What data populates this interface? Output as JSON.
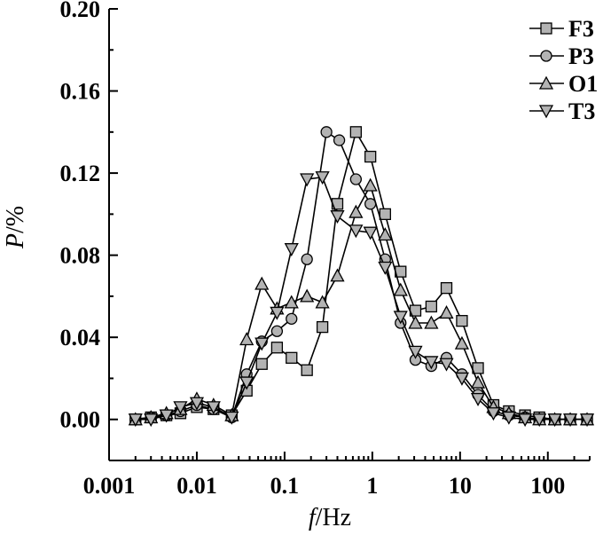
{
  "chart_data": {
    "type": "line",
    "title": "",
    "xlabel_var": "f",
    "xlabel_unit": "/Hz",
    "ylabel_var": "P",
    "ylabel_unit": "/%",
    "xscale": "log",
    "xlim": [
      0.001,
      300
    ],
    "ylim": [
      -0.02,
      0.2
    ],
    "x_tick_values": [
      0.001,
      0.01,
      0.1,
      1,
      10,
      100
    ],
    "x_tick_labels": [
      "0.001",
      "0.01",
      "0.1",
      "1",
      "10",
      "100"
    ],
    "y_tick_values": [
      0,
      0.04,
      0.08,
      0.12,
      0.16,
      0.2
    ],
    "y_tick_labels": [
      "0.00",
      "0.04",
      "0.08",
      "0.12",
      "0.16",
      "0.20"
    ],
    "grid": false,
    "legend_position": "top-right",
    "series": [
      {
        "name": "F3",
        "marker": "square",
        "points": [
          [
            0.002,
            0.0
          ],
          [
            0.003,
            0.001
          ],
          [
            0.0045,
            0.002
          ],
          [
            0.0065,
            0.003
          ],
          [
            0.01,
            0.006
          ],
          [
            0.0155,
            0.005
          ],
          [
            0.025,
            0.002
          ],
          [
            0.037,
            0.014
          ],
          [
            0.055,
            0.027
          ],
          [
            0.082,
            0.035
          ],
          [
            0.12,
            0.03
          ],
          [
            0.18,
            0.024
          ],
          [
            0.27,
            0.045
          ],
          [
            0.4,
            0.105
          ],
          [
            0.65,
            0.14
          ],
          [
            0.95,
            0.128
          ],
          [
            1.4,
            0.1
          ],
          [
            2.1,
            0.072
          ],
          [
            3.1,
            0.053
          ],
          [
            4.7,
            0.055
          ],
          [
            7.0,
            0.064
          ],
          [
            10.5,
            0.048
          ],
          [
            16,
            0.025
          ],
          [
            24,
            0.007
          ],
          [
            36,
            0.004
          ],
          [
            55,
            0.002
          ],
          [
            80,
            0.001
          ],
          [
            120,
            0.0
          ],
          [
            180,
            0.0
          ],
          [
            280,
            0.0
          ]
        ]
      },
      {
        "name": "P3",
        "marker": "circle",
        "points": [
          [
            0.002,
            0.0
          ],
          [
            0.003,
            0.001
          ],
          [
            0.0045,
            0.002
          ],
          [
            0.0065,
            0.004
          ],
          [
            0.01,
            0.007
          ],
          [
            0.0155,
            0.005
          ],
          [
            0.025,
            0.001
          ],
          [
            0.037,
            0.022
          ],
          [
            0.055,
            0.038
          ],
          [
            0.082,
            0.043
          ],
          [
            0.12,
            0.049
          ],
          [
            0.18,
            0.078
          ],
          [
            0.3,
            0.14
          ],
          [
            0.42,
            0.136
          ],
          [
            0.65,
            0.117
          ],
          [
            0.95,
            0.105
          ],
          [
            1.4,
            0.078
          ],
          [
            2.1,
            0.047
          ],
          [
            3.1,
            0.029
          ],
          [
            4.7,
            0.026
          ],
          [
            7.0,
            0.03
          ],
          [
            10.5,
            0.022
          ],
          [
            16,
            0.012
          ],
          [
            24,
            0.004
          ],
          [
            36,
            0.002
          ],
          [
            55,
            0.001
          ],
          [
            80,
            0.0
          ],
          [
            120,
            0.0
          ],
          [
            180,
            0.0
          ],
          [
            280,
            0.0
          ]
        ]
      },
      {
        "name": "O1",
        "marker": "triangle-up",
        "points": [
          [
            0.002,
            0.0
          ],
          [
            0.003,
            0.001
          ],
          [
            0.0045,
            0.003
          ],
          [
            0.0065,
            0.005
          ],
          [
            0.01,
            0.01
          ],
          [
            0.0155,
            0.007
          ],
          [
            0.025,
            0.002
          ],
          [
            0.037,
            0.039
          ],
          [
            0.055,
            0.066
          ],
          [
            0.082,
            0.054
          ],
          [
            0.12,
            0.057
          ],
          [
            0.18,
            0.06
          ],
          [
            0.27,
            0.057
          ],
          [
            0.4,
            0.07
          ],
          [
            0.65,
            0.101
          ],
          [
            0.95,
            0.114
          ],
          [
            1.4,
            0.09
          ],
          [
            2.1,
            0.063
          ],
          [
            3.1,
            0.047
          ],
          [
            4.7,
            0.047
          ],
          [
            7.0,
            0.052
          ],
          [
            10.5,
            0.037
          ],
          [
            16,
            0.018
          ],
          [
            24,
            0.006
          ],
          [
            36,
            0.003
          ],
          [
            55,
            0.001
          ],
          [
            80,
            0.0
          ],
          [
            120,
            0.0
          ],
          [
            180,
            0.0
          ],
          [
            280,
            0.0
          ]
        ]
      },
      {
        "name": "T3",
        "marker": "triangle-down",
        "points": [
          [
            0.002,
            0.0
          ],
          [
            0.003,
            0.0
          ],
          [
            0.0045,
            0.002
          ],
          [
            0.0065,
            0.006
          ],
          [
            0.01,
            0.008
          ],
          [
            0.0155,
            0.006
          ],
          [
            0.025,
            0.001
          ],
          [
            0.037,
            0.018
          ],
          [
            0.055,
            0.037
          ],
          [
            0.082,
            0.052
          ],
          [
            0.12,
            0.083
          ],
          [
            0.18,
            0.117
          ],
          [
            0.27,
            0.118
          ],
          [
            0.4,
            0.099
          ],
          [
            0.65,
            0.092
          ],
          [
            0.95,
            0.091
          ],
          [
            1.4,
            0.074
          ],
          [
            2.1,
            0.05
          ],
          [
            3.1,
            0.033
          ],
          [
            4.7,
            0.028
          ],
          [
            7.0,
            0.027
          ],
          [
            10.5,
            0.02
          ],
          [
            16,
            0.01
          ],
          [
            24,
            0.003
          ],
          [
            36,
            0.001
          ],
          [
            55,
            0.0
          ],
          [
            80,
            0.0
          ],
          [
            120,
            0.0
          ],
          [
            180,
            0.0
          ],
          [
            280,
            0.0
          ]
        ]
      }
    ]
  }
}
